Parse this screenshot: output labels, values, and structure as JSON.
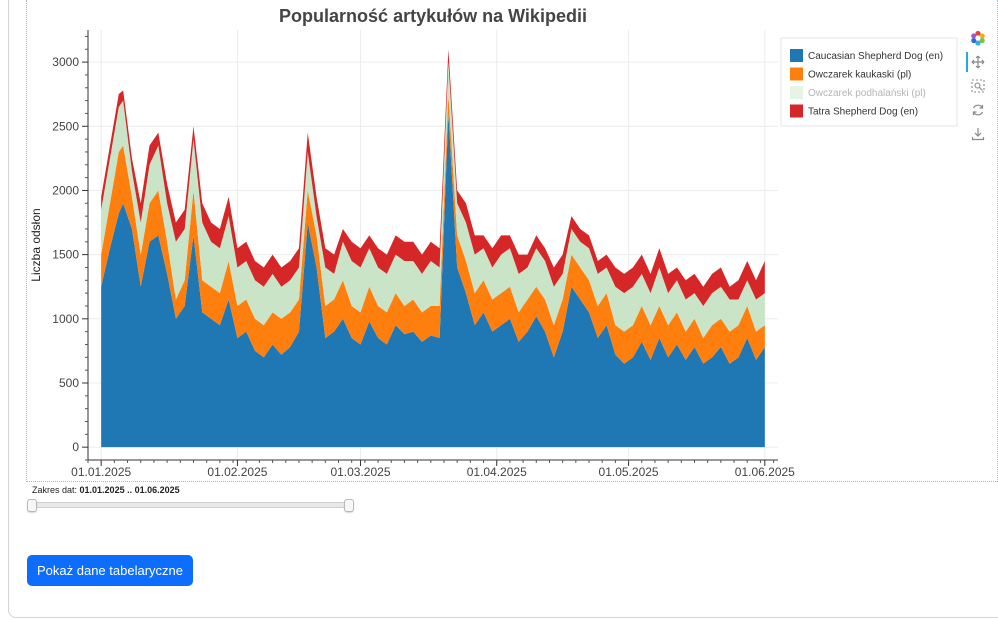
{
  "chart_data": {
    "type": "area",
    "stacked": true,
    "title": "Popularność artykułów na Wikipedii",
    "ylabel": "Liczba odsłon",
    "xlabel": "",
    "ylim": [
      -100,
      3250
    ],
    "xlim_days": [
      -3,
      154
    ],
    "x_start": "2025-01-01",
    "x_end": "2025-06-01",
    "x_ticks": [
      {
        "label": "01.01.2025",
        "day": 0
      },
      {
        "label": "01.02.2025",
        "day": 31
      },
      {
        "label": "01.03.2025",
        "day": 59
      },
      {
        "label": "01.04.2025",
        "day": 90
      },
      {
        "label": "01.05.2025",
        "day": 120
      },
      {
        "label": "01.06.2025",
        "day": 151
      }
    ],
    "y_ticks": [
      0,
      500,
      1000,
      1500,
      2000,
      2500,
      3000
    ],
    "grid": true,
    "legend_position": "right",
    "series": [
      {
        "name": "Caucasian Shepherd Dog (en)",
        "color": "#1f77b4",
        "visible": true
      },
      {
        "name": "Owczarek kaukaski (pl)",
        "color": "#ff7f0e",
        "visible": true
      },
      {
        "name": "Owczarek podhalański (pl)",
        "color": "#c9e4c6",
        "visible": false
      },
      {
        "name": "Tatra Shepherd Dog (en)",
        "color": "#d62728",
        "visible": true
      }
    ],
    "cumulative_values": {
      "day": [
        0,
        2,
        4,
        5,
        7,
        9,
        11,
        13,
        15,
        17,
        19,
        21,
        23,
        25,
        27,
        29,
        31,
        33,
        35,
        37,
        39,
        41,
        43,
        45,
        47,
        49,
        51,
        53,
        55,
        57,
        59,
        61,
        63,
        65,
        67,
        69,
        71,
        73,
        75,
        77,
        79,
        81,
        83,
        85,
        87,
        89,
        91,
        93,
        95,
        97,
        99,
        101,
        103,
        105,
        107,
        109,
        111,
        113,
        115,
        117,
        119,
        121,
        123,
        125,
        127,
        129,
        131,
        133,
        135,
        137,
        139,
        141,
        143,
        145,
        147,
        149,
        151
      ],
      "caucasian_en": [
        1250,
        1550,
        1820,
        1900,
        1700,
        1250,
        1600,
        1650,
        1350,
        1000,
        1100,
        1650,
        1050,
        1000,
        950,
        1150,
        850,
        900,
        750,
        700,
        800,
        720,
        780,
        900,
        1750,
        1400,
        850,
        900,
        1000,
        850,
        800,
        980,
        850,
        800,
        950,
        880,
        900,
        820,
        870,
        850,
        2600,
        1400,
        1200,
        950,
        1050,
        900,
        950,
        1000,
        820,
        900,
        1020,
        900,
        700,
        900,
        1250,
        1150,
        1050,
        850,
        950,
        720,
        650,
        700,
        820,
        680,
        850,
        700,
        800,
        680,
        780,
        650,
        700,
        780,
        650,
        700,
        850,
        680,
        780
      ],
      "kaukaski_pl": [
        1500,
        1900,
        2300,
        2350,
        1950,
        1500,
        1900,
        2000,
        1600,
        1150,
        1300,
        2000,
        1300,
        1250,
        1200,
        1450,
        1100,
        1150,
        1000,
        950,
        1050,
        1000,
        1050,
        1150,
        2000,
        1650,
        1100,
        1150,
        1300,
        1100,
        1050,
        1250,
        1100,
        1050,
        1200,
        1100,
        1150,
        1050,
        1100,
        1100,
        2750,
        1650,
        1450,
        1200,
        1300,
        1150,
        1200,
        1250,
        1050,
        1150,
        1250,
        1150,
        950,
        1150,
        1500,
        1400,
        1300,
        1100,
        1200,
        950,
        900,
        950,
        1100,
        950,
        1100,
        950,
        1050,
        900,
        1000,
        850,
        950,
        1000,
        900,
        950,
        1100,
        900,
        950
      ],
      "podhalanski_pl": [
        1850,
        2250,
        2650,
        2700,
        2150,
        1750,
        2200,
        2350,
        1900,
        1600,
        1700,
        2400,
        1750,
        1600,
        1550,
        1800,
        1400,
        1450,
        1300,
        1250,
        1350,
        1250,
        1300,
        1400,
        2300,
        1800,
        1400,
        1350,
        1600,
        1450,
        1400,
        1550,
        1400,
        1350,
        1500,
        1450,
        1450,
        1350,
        1450,
        1400,
        3000,
        1900,
        1750,
        1500,
        1550,
        1400,
        1500,
        1550,
        1350,
        1400,
        1550,
        1450,
        1250,
        1350,
        1700,
        1600,
        1550,
        1350,
        1400,
        1250,
        1200,
        1250,
        1350,
        1200,
        1400,
        1200,
        1300,
        1150,
        1200,
        1100,
        1200,
        1250,
        1150,
        1150,
        1300,
        1150,
        1200
      ],
      "tatra_en": [
        1950,
        2350,
        2750,
        2780,
        2250,
        1900,
        2350,
        2450,
        2050,
        1750,
        1850,
        2500,
        1900,
        1750,
        1700,
        1950,
        1550,
        1600,
        1450,
        1400,
        1500,
        1400,
        1450,
        1550,
        2450,
        1950,
        1550,
        1500,
        1700,
        1600,
        1550,
        1650,
        1550,
        1500,
        1650,
        1600,
        1600,
        1500,
        1600,
        1550,
        3100,
        2000,
        1900,
        1650,
        1650,
        1550,
        1650,
        1650,
        1500,
        1500,
        1650,
        1550,
        1400,
        1500,
        1800,
        1700,
        1650,
        1450,
        1500,
        1400,
        1350,
        1400,
        1500,
        1350,
        1550,
        1350,
        1400,
        1300,
        1350,
        1250,
        1350,
        1400,
        1250,
        1300,
        1450,
        1300,
        1450
      ]
    }
  },
  "toolbar": {
    "logo": "bokeh-logo-icon",
    "pan": "pan-icon",
    "box_zoom": "box-zoom-icon",
    "reset": "reset-icon",
    "save": "save-icon"
  },
  "range": {
    "label": "Zakres dat: ",
    "value": "01.01.2025 .. 01.06.2025"
  },
  "button": {
    "label": "Pokaż dane tabelaryczne"
  }
}
